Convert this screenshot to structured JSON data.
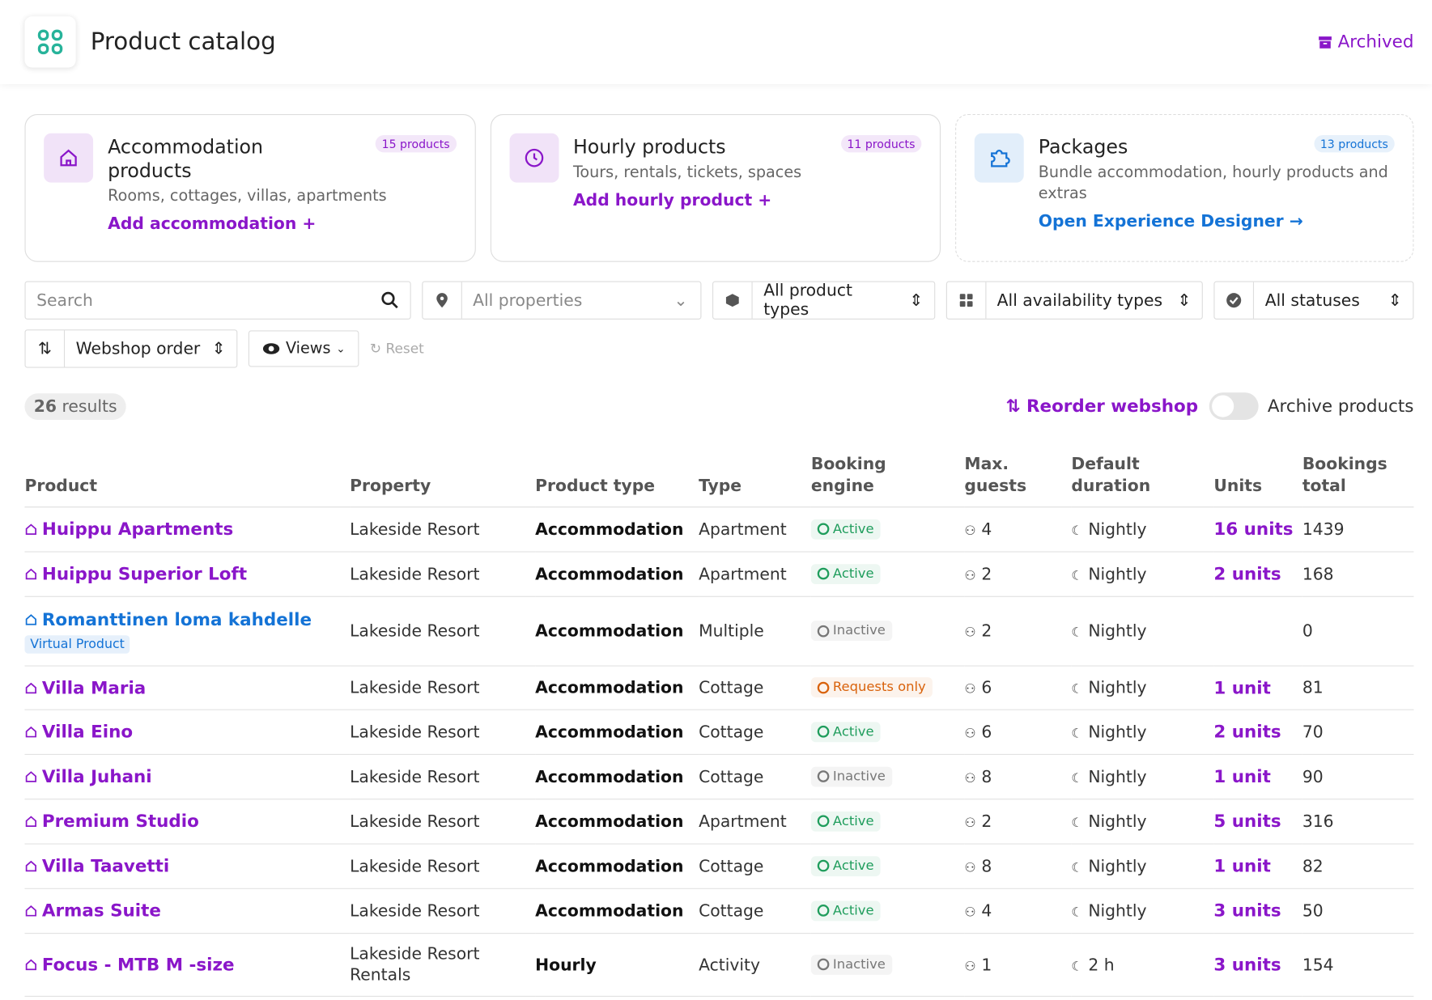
{
  "header": {
    "title": "Product catalog",
    "archived": "Archived"
  },
  "cards": [
    {
      "title": "Accommodation products",
      "badge": "15 products",
      "description": "Rooms, cottages, villas, apartments",
      "action": "Add accommodation +",
      "color": "#8a16c9"
    },
    {
      "title": "Hourly products",
      "badge": "11 products",
      "description": "Tours, rentals, tickets, spaces",
      "action": "Add hourly product +",
      "color": "#8a16c9"
    },
    {
      "title": "Packages",
      "badge": "13 products",
      "description": "Bundle accommodation, hourly products and extras",
      "action": "Open Experience Designer →",
      "color": "#1473d6"
    }
  ],
  "filters": {
    "search": "Search",
    "properties": "All properties",
    "product_types": "All product types",
    "availability_types": "All availability types",
    "statuses": "All statuses",
    "sort": "Webshop order",
    "views": "Views",
    "reset": "Reset"
  },
  "results": {
    "count": 26,
    "label": "results",
    "reorder": "Reorder webshop",
    "archive_toggle": "Archive products"
  },
  "table": {
    "headers": [
      "Product",
      "Property",
      "Product type",
      "Type",
      "Booking engine",
      "Max. guests",
      "Default duration",
      "Units",
      "Bookings total"
    ],
    "rows": [
      {
        "name": "Huippu Apartments",
        "color": "#8a16c9",
        "property": "Lakeside Resort",
        "product_type": "Accommodation",
        "type": "Apartment",
        "status": "Active",
        "status_color": "#1f9d5c",
        "guests": 4,
        "duration": "Nightly",
        "units": "16 units",
        "bookings": 1439
      },
      {
        "name": "Huippu Superior Loft",
        "color": "#8a16c9",
        "property": "Lakeside Resort",
        "product_type": "Accommodation",
        "type": "Apartment",
        "status": "Active",
        "status_color": "#1f9d5c",
        "guests": 2,
        "duration": "Nightly",
        "units": "2 units",
        "bookings": 168
      },
      {
        "name": "Romanttinen loma kahdelle",
        "tag": "Virtual Product",
        "color": "#1473d6",
        "property": "Lakeside Resort",
        "product_type": "Accommodation",
        "type": "Multiple",
        "status": "Inactive",
        "status_color": "#777777",
        "guests": 2,
        "duration": "Nightly",
        "units": null,
        "bookings": 0
      },
      {
        "name": "Villa Maria",
        "color": "#8a16c9",
        "property": "Lakeside Resort",
        "product_type": "Accommodation",
        "type": "Cottage",
        "status": "Requests only",
        "status_color": "#d9620b",
        "guests": 6,
        "duration": "Nightly",
        "units": "1 unit",
        "bookings": 81
      },
      {
        "name": "Villa Eino",
        "color": "#8a16c9",
        "property": "Lakeside Resort",
        "product_type": "Accommodation",
        "type": "Cottage",
        "status": "Active",
        "status_color": "#1f9d5c",
        "guests": 6,
        "duration": "Nightly",
        "units": "2 units",
        "bookings": 70
      },
      {
        "name": "Villa Juhani",
        "color": "#8a16c9",
        "property": "Lakeside Resort",
        "product_type": "Accommodation",
        "type": "Cottage",
        "status": "Inactive",
        "status_color": "#777777",
        "guests": 8,
        "duration": "Nightly",
        "units": "1 unit",
        "bookings": 90
      },
      {
        "name": "Premium Studio",
        "color": "#8a16c9",
        "property": "Lakeside Resort",
        "product_type": "Accommodation",
        "type": "Apartment",
        "status": "Active",
        "status_color": "#1f9d5c",
        "guests": 2,
        "duration": "Nightly",
        "units": "5 units",
        "bookings": 316
      },
      {
        "name": "Villa Taavetti",
        "color": "#8a16c9",
        "property": "Lakeside Resort",
        "product_type": "Accommodation",
        "type": "Cottage",
        "status": "Active",
        "status_color": "#1f9d5c",
        "guests": 8,
        "duration": "Nightly",
        "units": "1 unit",
        "bookings": 82
      },
      {
        "name": "Armas Suite",
        "color": "#8a16c9",
        "property": "Lakeside Resort",
        "product_type": "Accommodation",
        "type": "Cottage",
        "status": "Active",
        "status_color": "#1f9d5c",
        "guests": 4,
        "duration": "Nightly",
        "units": "3 units",
        "bookings": 50
      },
      {
        "name": "Focus - MTB M -size",
        "color": "#8a16c9",
        "property": "Lakeside Resort Rentals",
        "product_type": "Hourly",
        "type": "Activity",
        "status": "Inactive",
        "status_color": "#777777",
        "guests": 1,
        "duration": "2 h",
        "units": "3 units",
        "bookings": 154
      }
    ]
  }
}
